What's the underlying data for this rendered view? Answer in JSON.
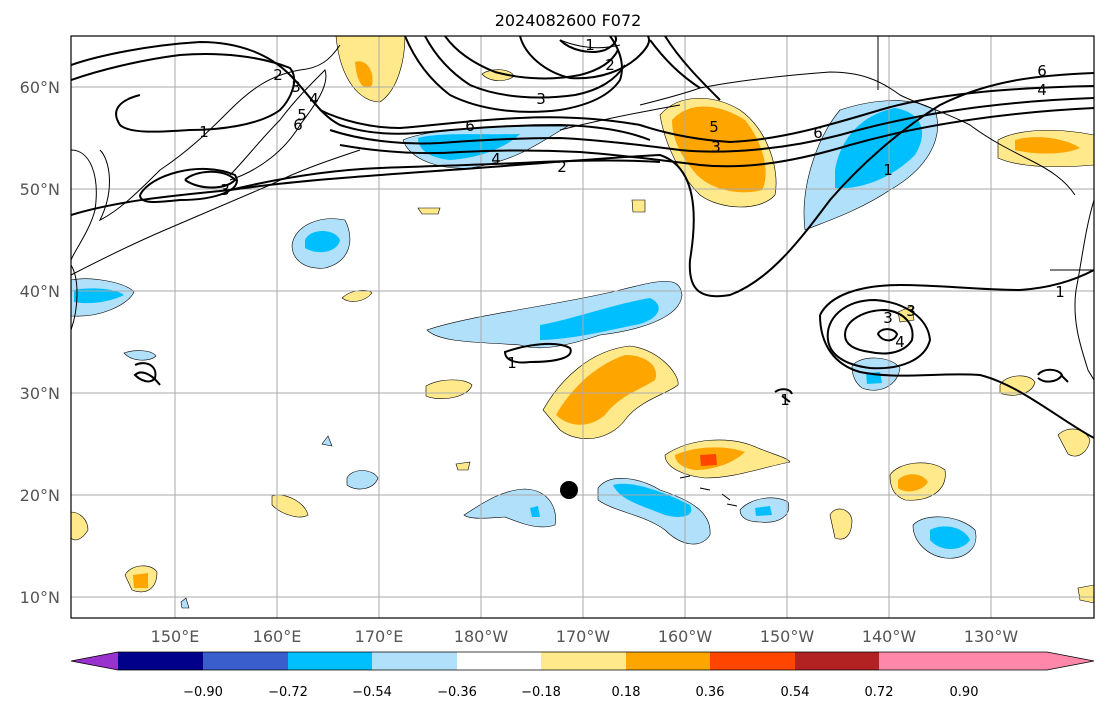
{
  "title": "2024082600 F072",
  "lat_labels": [
    "60°N",
    "50°N",
    "40°N",
    "30°N",
    "20°N",
    "10°N"
  ],
  "lon_labels": [
    "150°E",
    "160°E",
    "170°E",
    "180°W",
    "170°W",
    "160°W",
    "150°W",
    "140°W",
    "130°W"
  ],
  "contour_labels": [
    "1",
    "2",
    "3",
    "4",
    "5",
    "6",
    "1",
    "3",
    "4",
    "2",
    "3",
    "6",
    "3",
    "5",
    "6",
    "1",
    "6",
    "4",
    "2",
    "1",
    "1",
    "3",
    "4",
    "1",
    "3"
  ],
  "colorbar": {
    "ticks": [
      "−0.90",
      "−0.72",
      "−0.54",
      "−0.36",
      "−0.18",
      "0.18",
      "0.36",
      "0.54",
      "0.72",
      "0.90"
    ],
    "colors": [
      "#9932cc",
      "#00008b",
      "#3a5fcd",
      "#00bfff",
      "#b0e0fa",
      "#ffffff",
      "#ffe98a",
      "#ffa500",
      "#ff4500",
      "#b22222",
      "#ff88aa"
    ]
  },
  "colors": {
    "pos_light": "#ffe98a",
    "pos_mid": "#ffa500",
    "pos_high": "#ff4500",
    "neg_light": "#b0e0fa",
    "neg_mid": "#00bfff"
  },
  "marker_icon": "black-dot-icon"
}
